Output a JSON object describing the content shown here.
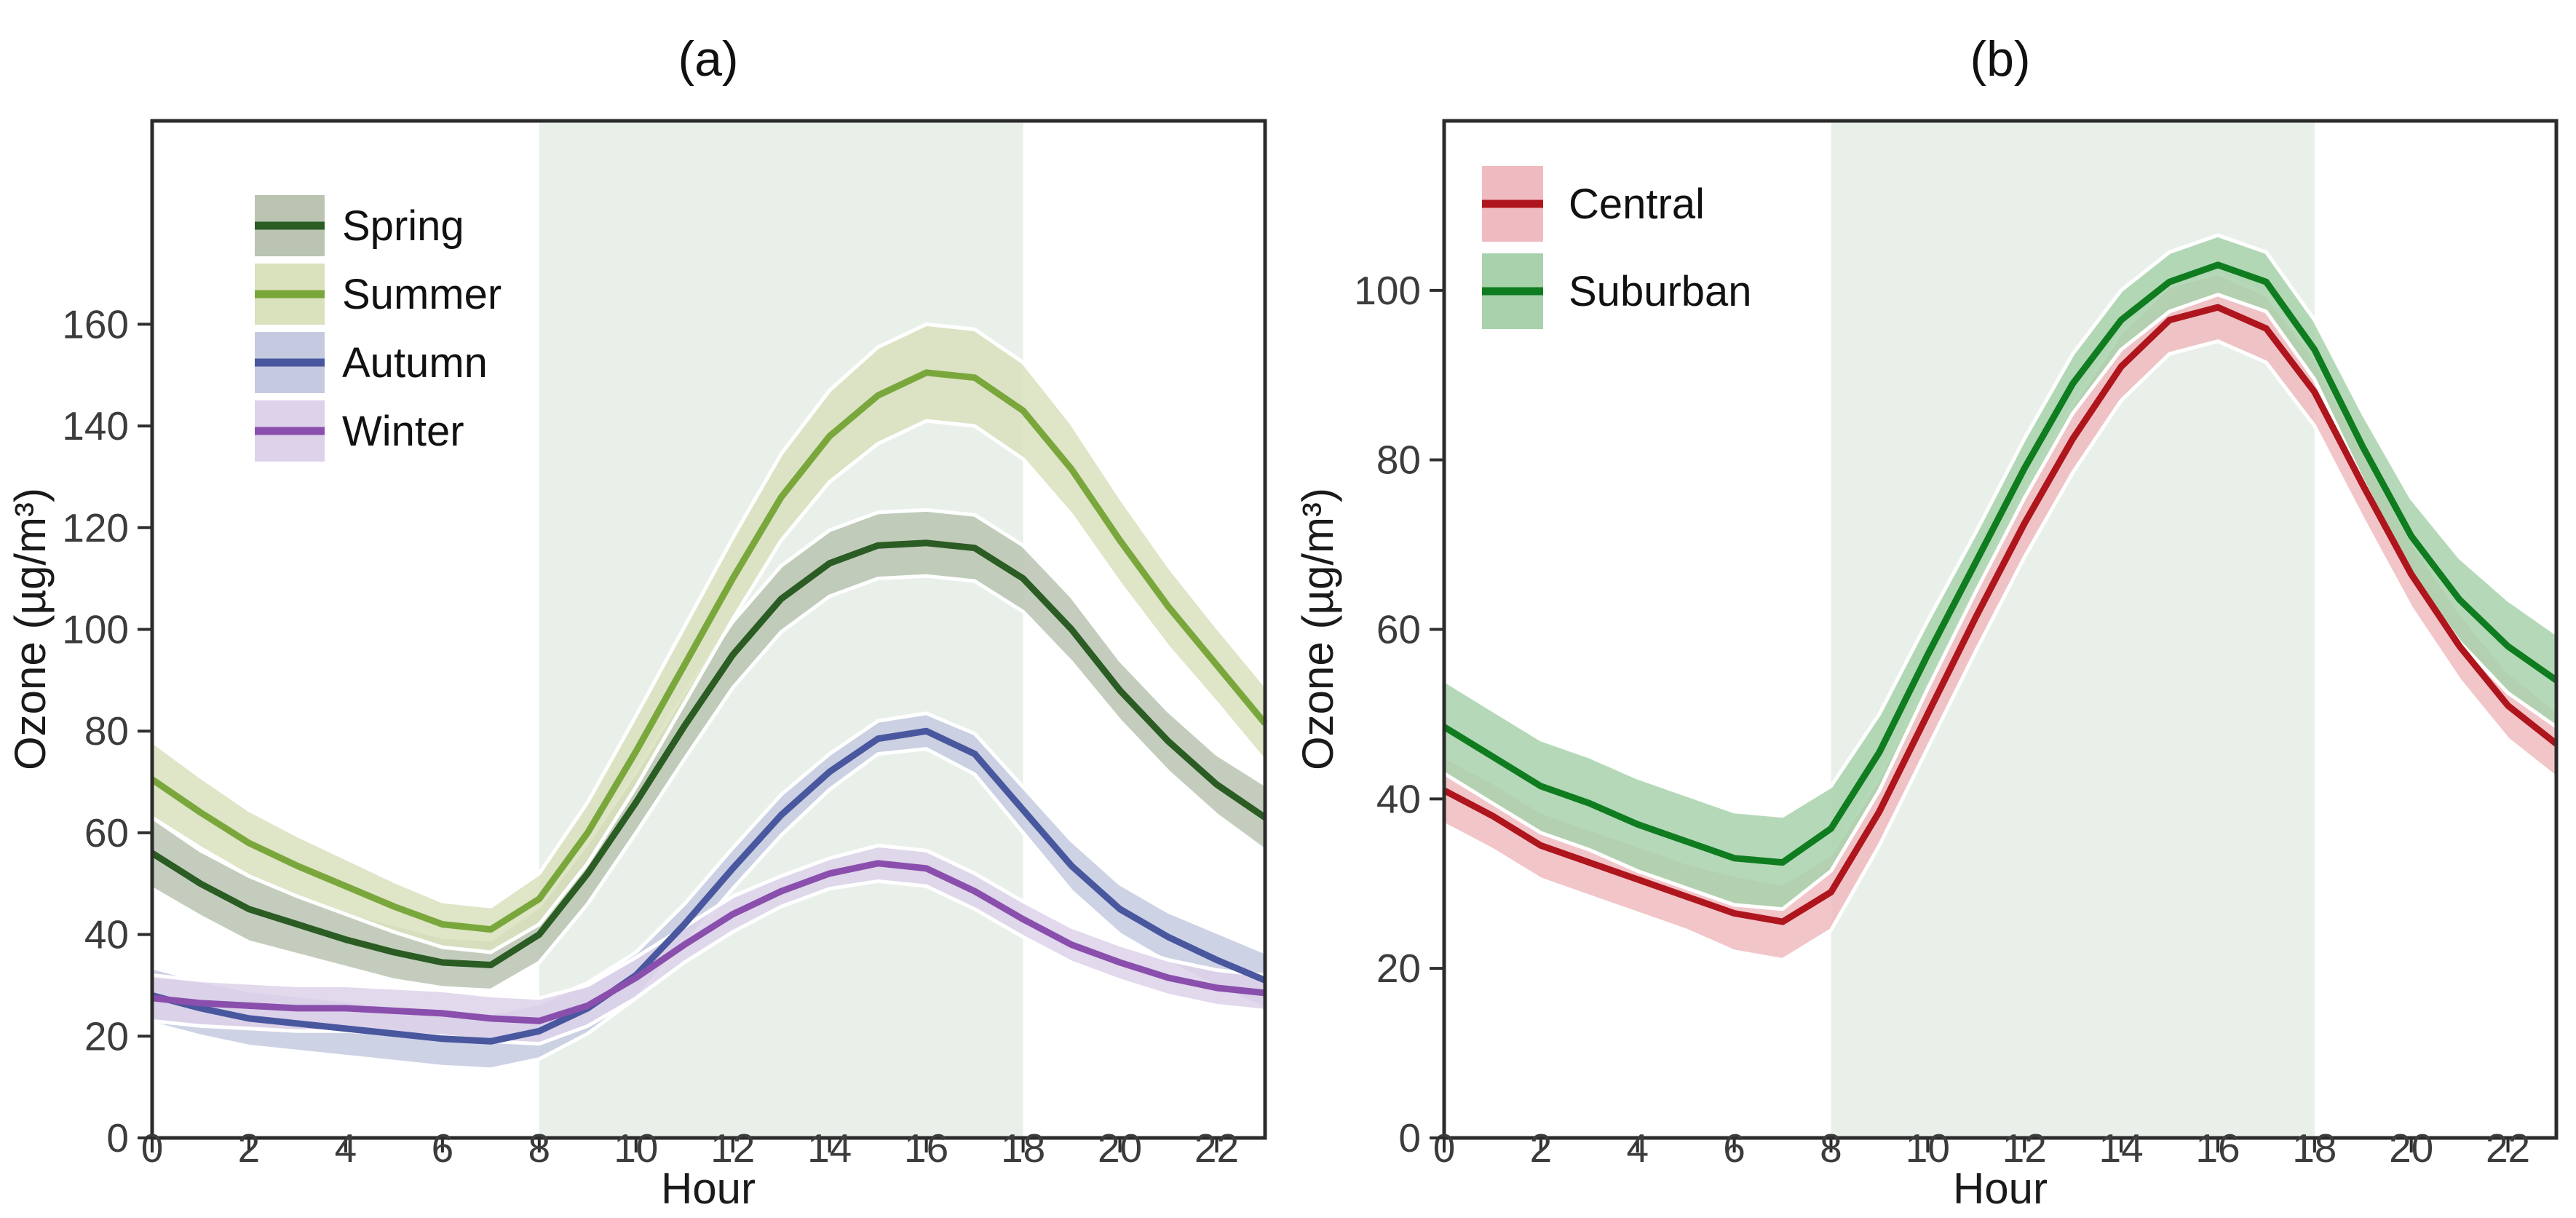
{
  "figure": {
    "background": "#ffffff",
    "border_color": "#2b2b2b",
    "tick_color": "#2e2e2e",
    "daytime_band_color": "#e9f0ea",
    "daytime_band_range": [
      8,
      18
    ]
  },
  "chart_data": [
    {
      "id": "a",
      "type": "line",
      "title": "(a)",
      "xlabel": "Hour",
      "ylabel": "Ozone (µg/m³)",
      "x": [
        0,
        1,
        2,
        3,
        4,
        5,
        6,
        7,
        8,
        9,
        10,
        11,
        12,
        13,
        14,
        15,
        16,
        17,
        18,
        19,
        20,
        21,
        22,
        23
      ],
      "x_ticks": [
        0,
        2,
        4,
        6,
        8,
        10,
        12,
        14,
        16,
        18,
        20,
        22
      ],
      "y_ticks": [
        0,
        20,
        40,
        60,
        80,
        100,
        120,
        140,
        160
      ],
      "xlim": [
        0,
        23
      ],
      "ylim": [
        0,
        200
      ],
      "shaded_x_range": [
        8,
        18
      ],
      "grid": false,
      "legend_position": "top-left",
      "series": [
        {
          "name": "Spring",
          "color": "#2a5c23",
          "band_color": "#bac4b1",
          "values": [
            56,
            50,
            45,
            42,
            39,
            36.5,
            34.5,
            34,
            40,
            52,
            66,
            81,
            95,
            106,
            113,
            116.5,
            117,
            116,
            110,
            100,
            88,
            78,
            69.5,
            63
          ],
          "lo": [
            49,
            43.5,
            38.5,
            36,
            33.5,
            31,
            29.5,
            29,
            34.5,
            46,
            60,
            74.5,
            88.5,
            99.5,
            106.5,
            110,
            110.5,
            109.5,
            103.5,
            93.5,
            82,
            72,
            63.5,
            56.5
          ],
          "hi": [
            63,
            56.5,
            51.5,
            48,
            44.5,
            42,
            39.5,
            39,
            45.5,
            58,
            72,
            87.5,
            101.5,
            112.5,
            119.5,
            123,
            123.5,
            122.5,
            116.5,
            106.5,
            94,
            84,
            75.5,
            69.5
          ]
        },
        {
          "name": "Summer",
          "color": "#7aa73c",
          "band_color": "#d9e1bd",
          "values": [
            70.5,
            64,
            58,
            53.5,
            49.5,
            45.5,
            42,
            41,
            47,
            60,
            76,
            93,
            110,
            126,
            138,
            146,
            150.5,
            149.5,
            143,
            131.5,
            117.5,
            104.5,
            93,
            81.5
          ],
          "lo": [
            63,
            57,
            51.5,
            47.5,
            44,
            40.5,
            37.5,
            36.5,
            42,
            54,
            69,
            85.5,
            102,
            117.5,
            129,
            136.5,
            141,
            140,
            133.5,
            122.5,
            109,
            96.5,
            85.5,
            74
          ],
          "hi": [
            78,
            71,
            64.5,
            59.5,
            55,
            50.5,
            46.5,
            45.5,
            52,
            66,
            83,
            100.5,
            118,
            134.5,
            147,
            155.5,
            160,
            159,
            152.5,
            140.5,
            126,
            112.5,
            100.5,
            89
          ]
        },
        {
          "name": "Autumn",
          "color": "#48579e",
          "band_color": "#c5cae0",
          "values": [
            28,
            25.5,
            23.5,
            22.5,
            21.5,
            20.5,
            19.5,
            19,
            21,
            25.5,
            32,
            42,
            53,
            63.5,
            72,
            78.5,
            80,
            75.5,
            64.5,
            53.5,
            45,
            39.5,
            35,
            31
          ],
          "lo": [
            22.5,
            20,
            18,
            17,
            16,
            15,
            14,
            13.5,
            15.5,
            20.5,
            27.5,
            38,
            49,
            59.5,
            68.5,
            75.5,
            76.5,
            71.5,
            60,
            48.5,
            40,
            34.5,
            29.5,
            25.5
          ],
          "hi": [
            33.5,
            31,
            29,
            28,
            27,
            26,
            25,
            24.5,
            26.5,
            30.5,
            36.5,
            46,
            57,
            67.5,
            75.5,
            82,
            83.5,
            79.5,
            69,
            58.5,
            50,
            44.5,
            40.5,
            36.5
          ]
        },
        {
          "name": "Winter",
          "color": "#8a4fad",
          "band_color": "#ddd2ea",
          "values": [
            27.5,
            26.5,
            26,
            25.5,
            25.5,
            25,
            24.5,
            23.5,
            23,
            26,
            31.5,
            38,
            44,
            48.5,
            52,
            54,
            53,
            48.5,
            43,
            38,
            34.5,
            31.5,
            29.5,
            28.5
          ],
          "lo": [
            23,
            22,
            21.5,
            21,
            21,
            20.5,
            20,
            19,
            18.5,
            22,
            27.5,
            34.5,
            40.5,
            45.5,
            49,
            50.5,
            49.5,
            45,
            39.5,
            34.5,
            31,
            28,
            26,
            25
          ],
          "hi": [
            32,
            31,
            30.5,
            30,
            30,
            29.5,
            29,
            28,
            27.5,
            30,
            35.5,
            41.5,
            47.5,
            51.5,
            55,
            57.5,
            56.5,
            52,
            46.5,
            41.5,
            38,
            35,
            33,
            32
          ]
        }
      ]
    },
    {
      "id": "b",
      "type": "line",
      "title": "(b)",
      "xlabel": "Hour",
      "ylabel": "Ozone (µg/m³)",
      "x": [
        0,
        1,
        2,
        3,
        4,
        5,
        6,
        7,
        8,
        9,
        10,
        11,
        12,
        13,
        14,
        15,
        16,
        17,
        18,
        19,
        20,
        21,
        22,
        23
      ],
      "x_ticks": [
        0,
        2,
        4,
        6,
        8,
        10,
        12,
        14,
        16,
        18,
        20,
        22
      ],
      "y_ticks": [
        0,
        20,
        40,
        60,
        80,
        100
      ],
      "xlim": [
        0,
        23
      ],
      "ylim": [
        0,
        120
      ],
      "shaded_x_range": [
        8,
        18
      ],
      "grid": false,
      "legend_position": "top-left",
      "series": [
        {
          "name": "Central",
          "color": "#ae151c",
          "band_color": "#f0bbc0",
          "values": [
            41,
            38,
            34.5,
            32.5,
            30.5,
            28.5,
            26.5,
            25.5,
            29,
            38.5,
            50,
            61.5,
            72.5,
            82.5,
            91,
            96.5,
            98,
            95.5,
            88,
            77,
            66.5,
            58,
            51,
            46.5
          ],
          "lo": [
            37,
            34,
            30.5,
            28.5,
            26.5,
            24.5,
            22,
            21,
            24.5,
            34.5,
            46,
            57.5,
            68.5,
            78.5,
            87,
            92.5,
            94,
            91.5,
            84,
            73,
            62.5,
            54,
            47,
            42.5
          ],
          "hi": [
            45,
            42,
            38.5,
            36.5,
            34.5,
            32.5,
            31,
            30,
            33.5,
            42.5,
            54,
            65.5,
            76.5,
            86.5,
            95,
            100.5,
            102,
            99.5,
            92,
            81,
            70.5,
            62,
            55,
            50.5
          ]
        },
        {
          "name": "Suburban",
          "color": "#0f7c20",
          "band_color": "#a8d2ab",
          "values": [
            48.5,
            45,
            41.5,
            39.5,
            37,
            35,
            33,
            32.5,
            36.5,
            45.5,
            57,
            68,
            79,
            89,
            96.5,
            101,
            103,
            101,
            93,
            81.5,
            71,
            63.5,
            58,
            54
          ],
          "lo": [
            43,
            39.5,
            36,
            34,
            31.5,
            29.5,
            27.5,
            27,
            31.5,
            41,
            53,
            64.5,
            75.5,
            85.5,
            93,
            97.5,
            99.5,
            97.5,
            89.5,
            77.5,
            66.5,
            58.5,
            52.5,
            48.5
          ],
          "hi": [
            54,
            50.5,
            47,
            45,
            42.5,
            40.5,
            38.5,
            38,
            41.5,
            50,
            61,
            71.5,
            82.5,
            92.5,
            100,
            104.5,
            106.5,
            104.5,
            96.5,
            85.5,
            75.5,
            68.5,
            63.5,
            59.5
          ]
        }
      ]
    }
  ]
}
